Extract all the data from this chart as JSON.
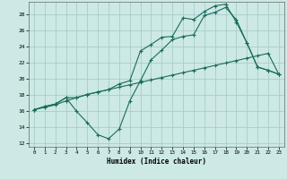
{
  "xlabel": "Humidex (Indice chaleur)",
  "xlim": [
    -0.5,
    23.5
  ],
  "ylim": [
    11.5,
    29.5
  ],
  "yticks": [
    12,
    14,
    16,
    18,
    20,
    22,
    24,
    26,
    28
  ],
  "xticks": [
    0,
    1,
    2,
    3,
    4,
    5,
    6,
    7,
    8,
    9,
    10,
    11,
    12,
    13,
    14,
    15,
    16,
    17,
    18,
    19,
    20,
    21,
    22,
    23
  ],
  "background_color": "#cce9e5",
  "grid_color": "#aaccca",
  "line_color": "#1a6b5a",
  "line1_x": [
    0,
    1,
    2,
    3,
    4,
    5,
    6,
    7,
    8,
    9,
    10,
    11,
    12,
    13,
    14,
    15,
    16,
    17,
    18,
    19,
    20,
    21,
    22,
    23
  ],
  "line1_y": [
    16.1,
    16.4,
    16.7,
    17.2,
    17.6,
    18.0,
    18.3,
    18.6,
    18.9,
    19.2,
    19.5,
    19.8,
    20.1,
    20.4,
    20.7,
    21.0,
    21.3,
    21.6,
    21.9,
    22.2,
    22.5,
    22.8,
    23.1,
    20.5
  ],
  "line2_x": [
    0,
    1,
    2,
    3,
    4,
    5,
    6,
    7,
    8,
    9,
    10,
    11,
    12,
    13,
    14,
    15,
    16,
    17,
    18,
    19,
    20,
    21,
    22,
    23
  ],
  "line2_y": [
    16.1,
    16.5,
    16.8,
    17.6,
    15.9,
    14.5,
    13.0,
    12.5,
    13.7,
    17.2,
    19.7,
    22.3,
    23.5,
    24.8,
    25.2,
    25.4,
    27.8,
    28.2,
    28.8,
    27.3,
    24.4,
    21.4,
    21.0,
    20.5
  ],
  "line3_x": [
    0,
    1,
    2,
    3,
    4,
    5,
    6,
    7,
    8,
    9,
    10,
    11,
    12,
    13,
    14,
    15,
    16,
    17,
    18,
    19,
    20,
    21,
    22,
    23
  ],
  "line3_y": [
    16.1,
    16.5,
    16.8,
    17.6,
    17.6,
    18.0,
    18.3,
    18.6,
    19.3,
    19.7,
    23.4,
    24.2,
    25.1,
    25.2,
    27.5,
    27.3,
    28.3,
    29.0,
    29.2,
    27.0,
    24.4,
    21.4,
    21.0,
    20.5
  ]
}
